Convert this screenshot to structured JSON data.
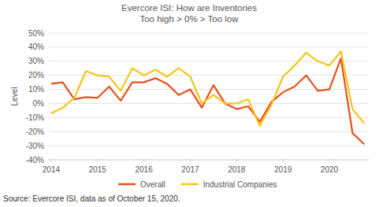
{
  "chart_data": {
    "type": "line",
    "title": "Evercore ISI: How are Inventories",
    "subtitle": "Too high > 0% > Too low",
    "y_label": "Level",
    "source": "Source: Evercore ISI, data as of October 15, 2020.",
    "x": [
      2014,
      2014.25,
      2014.5,
      2014.75,
      2015,
      2015.25,
      2015.5,
      2015.75,
      2016,
      2016.25,
      2016.5,
      2016.75,
      2017,
      2017.25,
      2017.5,
      2017.75,
      2018,
      2018.25,
      2018.5,
      2018.75,
      2019,
      2019.25,
      2019.5,
      2019.75,
      2020,
      2020.25,
      2020.5,
      2020.75
    ],
    "series": [
      {
        "name": "Overall",
        "color": "#e8501c",
        "values": [
          14,
          15,
          3,
          4.5,
          4,
          12,
          2,
          15,
          15,
          18,
          14,
          6,
          10,
          -3,
          13,
          0,
          -4,
          -2,
          -13,
          1,
          8,
          12,
          20,
          9,
          10,
          32,
          -21,
          -29
        ]
      },
      {
        "name": "Industrial Companies",
        "color": "#f5c518",
        "values": [
          -7,
          -3,
          4,
          23,
          20,
          19,
          9,
          25,
          20,
          24,
          19,
          25,
          19,
          0,
          6,
          0,
          0,
          3,
          -16,
          -1,
          19,
          27,
          36,
          30,
          27,
          37,
          -4,
          -14
        ]
      }
    ],
    "xlim": [
      2013.95,
      2020.85
    ],
    "xticks": [
      2014,
      2015,
      2016,
      2017,
      2018,
      2019,
      2020
    ],
    "ylim": [
      -40,
      50
    ],
    "yticks": [
      {
        "value": -40,
        "label": "-40%"
      },
      {
        "value": -30,
        "label": "-30%"
      },
      {
        "value": -20,
        "label": "-20%"
      },
      {
        "value": -10,
        "label": "-10%"
      },
      {
        "value": 0,
        "label": "0%"
      },
      {
        "value": 10,
        "label": "10%"
      },
      {
        "value": 20,
        "label": "20%"
      },
      {
        "value": 30,
        "label": "30%"
      },
      {
        "value": 40,
        "label": "40%"
      },
      {
        "value": 50,
        "label": "50%"
      }
    ],
    "grid": true,
    "legend": "bottom"
  }
}
